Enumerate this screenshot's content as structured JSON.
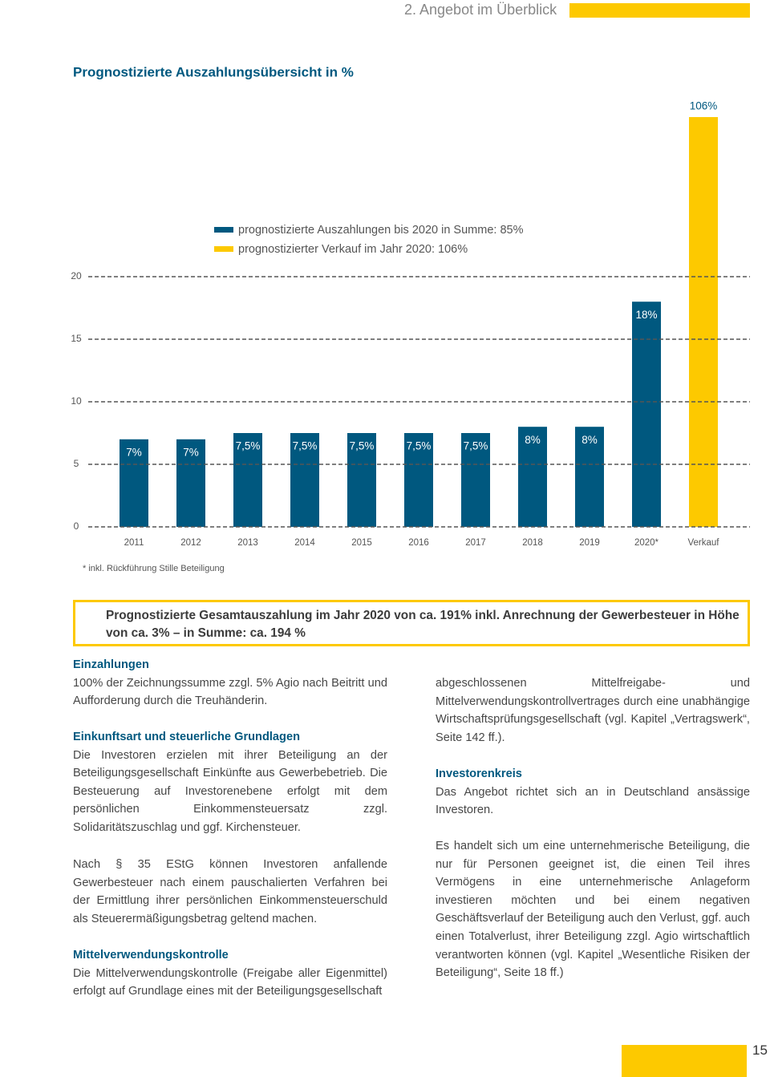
{
  "header": {
    "section": "2. Angebot im Überblick"
  },
  "chart_data": {
    "type": "bar",
    "title": "Prognostizierte Auszahlungsübersicht in %",
    "categories": [
      "2011",
      "2012",
      "2013",
      "2014",
      "2015",
      "2016",
      "2017",
      "2018",
      "2019",
      "2020*",
      "Verkauf"
    ],
    "series": [
      {
        "name": "prognostizierte  Auszahlungen bis 2020 in Summe: 85%",
        "color": "#00587f",
        "values": [
          7,
          7,
          7.5,
          7.5,
          7.5,
          7.5,
          7.5,
          8,
          8,
          18,
          null
        ],
        "value_labels": [
          "7%",
          "7%",
          "7,5%",
          "7,5%",
          "7,5%",
          "7,5%",
          "7,5%",
          "8%",
          "8%",
          "18%",
          null
        ]
      },
      {
        "name": "prognostizierter Verkauf im Jahr 2020: 106%",
        "color": "#fdc900",
        "values": [
          null,
          null,
          null,
          null,
          null,
          null,
          null,
          null,
          null,
          null,
          106
        ],
        "value_labels": [
          null,
          null,
          null,
          null,
          null,
          null,
          null,
          null,
          null,
          null,
          "106%"
        ]
      }
    ],
    "ylim": [
      0,
      20
    ],
    "yticks": [
      0,
      5,
      10,
      15,
      20
    ],
    "grid": true,
    "footnote": "* inkl. Rückführung Stille Beteiligung"
  },
  "highlight": "Prognostizierte Gesamtauszahlung im Jahr 2020 von ca. 191% inkl. Anrechnung der Gewerbesteuer in Höhe von ca. 3% – in Summe: ca. 194 %",
  "left_column": [
    {
      "heading": "Einzahlungen",
      "text": "100% der Zeichnungssumme zzgl. 5% Agio nach Beitritt und Aufforderung durch die Treuhänderin."
    },
    {
      "heading": "Einkunftsart und steuerliche Grundlagen",
      "text": "Die Investoren erzielen mit ihrer Beteiligung an der Beteiligungsgesellschaft Einkünfte aus Gewerbebetrieb. Die Besteuerung auf Investorenebene erfolgt mit dem persönlichen Einkommensteuersatz zzgl. Solidaritätszuschlag und ggf. Kirchensteuer."
    },
    {
      "text": "Nach § 35 EStG können Investoren anfallende Gewerbesteuer nach einem pauschalierten Verfahren bei der Ermittlung ihrer persönlichen Einkommensteuerschuld als Steuerermäßigungsbetrag geltend machen."
    },
    {
      "heading": "Mittelverwendungskontrolle",
      "text": "Die Mittelverwendungskontrolle (Freigabe aller Eigenmittel) erfolgt auf Grundlage eines mit der Beteiligungsgesellschaft"
    }
  ],
  "right_column": [
    {
      "text": "abgeschlossenen Mittelfreigabe- und Mittelverwendungskontrollvertrages durch eine unabhängige Wirtschaftsprüfungsgesellschaft (vgl. Kapitel „Vertragswerk“, Seite 142 ff.)."
    },
    {
      "heading": "Investorenkreis",
      "text": "Das Angebot richtet sich an in Deutschland ansässige Investoren."
    },
    {
      "text": "Es handelt sich um eine unternehmerische Beteiligung, die nur für Personen geeignet ist, die einen Teil ihres Vermögens in eine unternehmerische Anlageform investieren möchten und bei einem negativen Geschäftsverlauf der Beteiligung auch den Verlust, ggf. auch einen Totalverlust, ihrer Beteiligung zzgl. Agio wirtschaftlich verantworten können (vgl. Kapitel „Wesentliche Risiken der Beteiligung“, Seite 18 ff.)"
    }
  ],
  "page_number": "15"
}
